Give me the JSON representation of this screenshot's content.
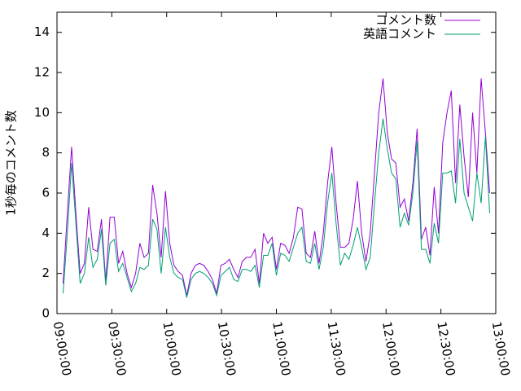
{
  "chart_data": {
    "type": "line",
    "ylabel": "1秒毎のコメント数",
    "x": [
      "09:03:20",
      "09:05:40",
      "09:08:00",
      "09:10:20",
      "09:12:40",
      "09:15:00",
      "09:17:20",
      "09:19:40",
      "09:22:00",
      "09:24:20",
      "09:26:40",
      "09:29:00",
      "09:31:20",
      "09:33:40",
      "09:36:00",
      "09:38:20",
      "09:40:40",
      "09:43:00",
      "09:45:20",
      "09:47:40",
      "09:50:00",
      "09:52:20",
      "09:54:40",
      "09:57:00",
      "09:59:20",
      "10:01:40",
      "10:04:00",
      "10:06:20",
      "10:08:40",
      "10:11:00",
      "10:13:20",
      "10:15:40",
      "10:18:00",
      "10:20:20",
      "10:22:40",
      "10:25:00",
      "10:27:20",
      "10:29:40",
      "10:32:00",
      "10:34:20",
      "10:36:40",
      "10:39:00",
      "10:41:20",
      "10:43:40",
      "10:46:00",
      "10:48:20",
      "10:50:40",
      "10:53:00",
      "10:55:20",
      "10:57:40",
      "11:00:00",
      "11:02:20",
      "11:04:40",
      "11:07:00",
      "11:09:20",
      "11:11:40",
      "11:14:00",
      "11:16:20",
      "11:18:40",
      "11:21:00",
      "11:23:20",
      "11:25:40",
      "11:28:00",
      "11:30:20",
      "11:32:40",
      "11:35:00",
      "11:37:20",
      "11:39:40",
      "11:42:00",
      "11:44:20",
      "11:46:40",
      "11:49:00",
      "11:51:20",
      "11:53:40",
      "11:56:00",
      "11:58:20",
      "12:00:40",
      "12:03:00",
      "12:05:20",
      "12:07:40",
      "12:10:00",
      "12:12:20",
      "12:14:40",
      "12:17:00",
      "12:19:20",
      "12:21:40",
      "12:24:00",
      "12:26:20",
      "12:28:40",
      "12:31:00",
      "12:33:20",
      "12:35:40",
      "12:38:00",
      "12:40:20",
      "12:42:40",
      "12:45:00",
      "12:47:20",
      "12:49:40",
      "12:52:00",
      "12:54:20",
      "12:56:40"
    ],
    "series": [
      {
        "name": "コメント数",
        "color": "#9400d3",
        "values": [
          1.5,
          5,
          8.3,
          5,
          2,
          2.5,
          5.3,
          3.2,
          3.1,
          4.7,
          1.6,
          4.8,
          4.8,
          2.5,
          3.1,
          2,
          1.3,
          2,
          3.5,
          2.8,
          3,
          6.4,
          5,
          2.8,
          6.1,
          3.5,
          2.4,
          2.1,
          1.9,
          0.9,
          2,
          2.4,
          2.5,
          2.4,
          2.1,
          1.7,
          1,
          2.4,
          2.5,
          2.7,
          2.2,
          1.8,
          2.6,
          2.8,
          2.8,
          3.2,
          1.5,
          4,
          3.5,
          3.8,
          2.2,
          3.5,
          3.4,
          3,
          3.8,
          5.3,
          5.2,
          3,
          2.8,
          4.1,
          2.5,
          4,
          6.5,
          8.3,
          5.5,
          3.3,
          3.3,
          3.5,
          4.7,
          6.6,
          4,
          2.6,
          4,
          7,
          10,
          11.7,
          9,
          7.7,
          7.5,
          5.3,
          5.7,
          4.6,
          6.5,
          9.2,
          3.7,
          4.3,
          2.9,
          6.3,
          4,
          8.5,
          10,
          11.1,
          6.5,
          10.4,
          7.8,
          5.8,
          10,
          7,
          11.7,
          9,
          6
        ]
      },
      {
        "name": "英語コメント",
        "color": "#009e73",
        "values": [
          1,
          4,
          7.5,
          4.5,
          1.5,
          2,
          3.8,
          2.3,
          2.7,
          4.2,
          1.4,
          3.5,
          3.7,
          2.1,
          2.5,
          1.8,
          1.1,
          1.5,
          2.3,
          2.2,
          2.4,
          4.7,
          4.2,
          2,
          4.3,
          2.8,
          2,
          1.8,
          1.7,
          0.8,
          1.7,
          2,
          2.1,
          2,
          1.8,
          1.5,
          0.9,
          1.9,
          2.1,
          2.3,
          1.7,
          1.6,
          2.2,
          2.2,
          2.1,
          2.4,
          1.3,
          2.9,
          2.9,
          3.5,
          1.9,
          3,
          2.9,
          2.6,
          3.3,
          4,
          4.3,
          2.6,
          2.5,
          3.5,
          2.2,
          3.3,
          5.5,
          7,
          4.5,
          2.4,
          3,
          2.7,
          3.4,
          4.3,
          3.3,
          2.2,
          2.8,
          5.5,
          8,
          9.7,
          8.2,
          7,
          6.7,
          4.3,
          5,
          4.4,
          6,
          8.6,
          3.2,
          3.2,
          2.5,
          4.5,
          3.5,
          7,
          7,
          7.1,
          5.5,
          8.7,
          6,
          5.3,
          4.6,
          7,
          5.5,
          8.8,
          5
        ]
      }
    ],
    "xlim": [
      "09:00:00",
      "13:00:00"
    ],
    "xticks": [
      "09:00:00",
      "09:30:00",
      "10:00:00",
      "10:30:00",
      "11:00:00",
      "11:30:00",
      "12:00:00",
      "12:30:00",
      "13:00:00"
    ],
    "ylim": [
      0,
      15
    ],
    "yticks": [
      0,
      2,
      4,
      6,
      8,
      10,
      12,
      14
    ],
    "legend": "top-right"
  }
}
